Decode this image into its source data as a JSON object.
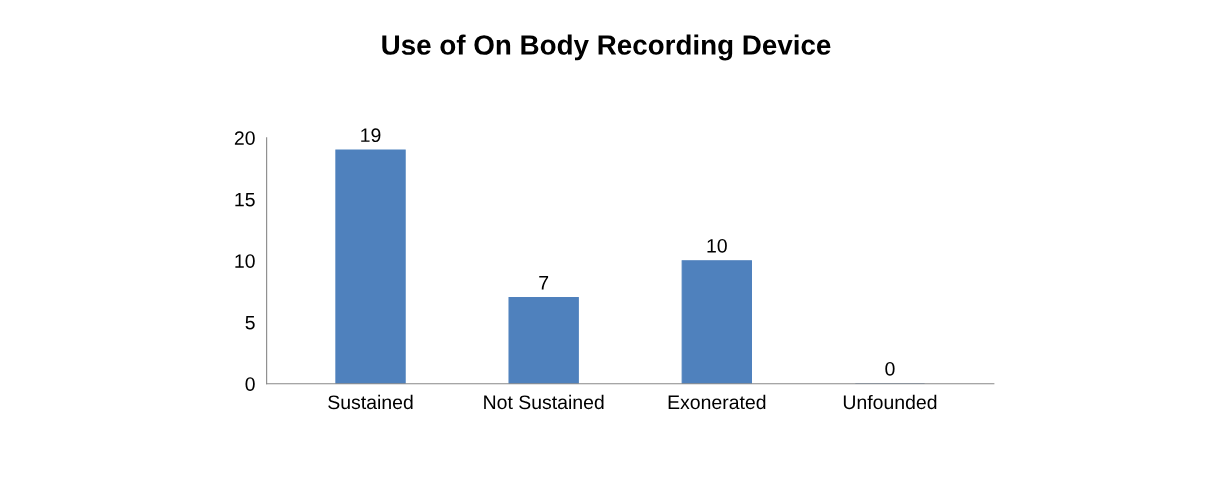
{
  "chart_data": {
    "type": "bar",
    "title": "Use of On Body Recording Device",
    "categories": [
      "Sustained",
      "Not Sustained",
      "Exonerated",
      "Unfounded"
    ],
    "values": [
      19,
      7,
      10,
      0
    ],
    "color": "#4f81bd",
    "ylim": [
      0,
      20
    ],
    "yticks": [
      0,
      5,
      10,
      15,
      20
    ],
    "grid": false,
    "data_labels": true
  }
}
